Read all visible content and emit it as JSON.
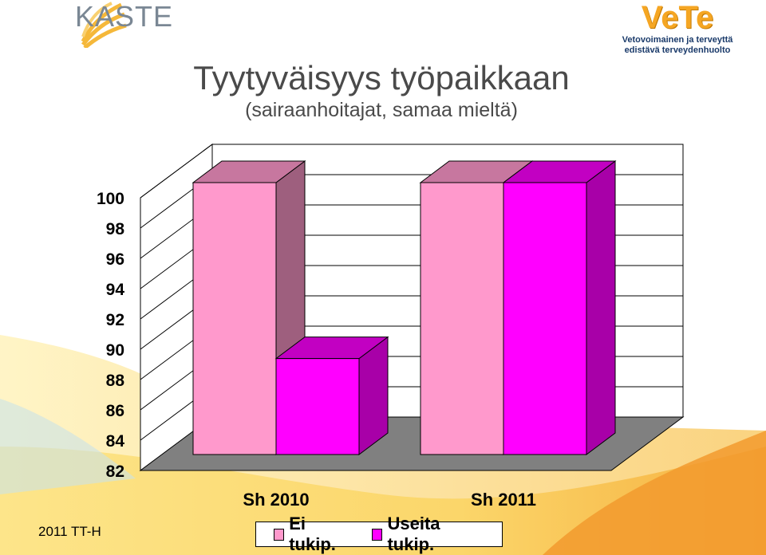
{
  "logos": {
    "kaste": "KASTE",
    "vete": "VeTe",
    "vete_tagline_1": "Vetovoimainen ja terveyttä",
    "vete_tagline_2": "edistävä terveydenhuolto"
  },
  "footer_text": "2011 TT-H",
  "colors": {
    "ei_tukip": "#ff99cc",
    "useita_tukip": "#ff00ff",
    "floor": "#808080",
    "wall": "#ffffff",
    "accent_orange": "#f5a623"
  },
  "chart_data": {
    "type": "bar",
    "title": "Tyytyväisyys työpaikkaan",
    "subtitle": "(sairaanhoitajat, samaa mieltä)",
    "categories": [
      "Sh 2010",
      "Sh 2011"
    ],
    "series": [
      {
        "name": "Ei tukip.",
        "values": [
          99,
          99
        ]
      },
      {
        "name": "Useita tukip.",
        "values": [
          88,
          99
        ]
      }
    ],
    "ylim": [
      82,
      100
    ],
    "yticks": [
      100,
      98,
      96,
      94,
      92,
      90,
      88,
      86,
      84,
      82
    ],
    "grid": true,
    "legend_position": "bottom",
    "style": "3d-column"
  }
}
